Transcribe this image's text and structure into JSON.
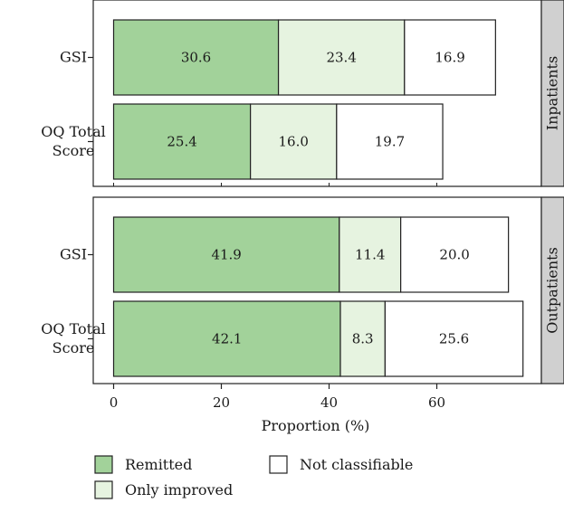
{
  "chart_data": {
    "type": "bar",
    "orientation": "horizontal",
    "stacked": true,
    "xlabel": "Proportion (%)",
    "ylabel": "",
    "xlim": [
      -6,
      80
    ],
    "xticks": [
      0,
      20,
      40,
      60
    ],
    "legend_position": "bottom",
    "series": [
      {
        "name": "Remitted",
        "color": "#a2d29a"
      },
      {
        "name": "Only improved",
        "color": "#e6f3e0"
      },
      {
        "name": "Not classifiable",
        "color": "#ffffff"
      }
    ],
    "panels": [
      {
        "label": "Inpatients",
        "rows": [
          {
            "label": [
              "GSI"
            ],
            "values": [
              30.6,
              23.4,
              16.9
            ],
            "value_labels": [
              "30.6",
              "23.4",
              "16.9"
            ]
          },
          {
            "label": [
              "OQ Total",
              "Score"
            ],
            "values": [
              25.4,
              16.0,
              19.7
            ],
            "value_labels": [
              "25.4",
              "16.0",
              "19.7"
            ]
          }
        ]
      },
      {
        "label": "Outpatients",
        "rows": [
          {
            "label": [
              "GSI"
            ],
            "values": [
              41.9,
              11.4,
              20.0
            ],
            "value_labels": [
              "41.9",
              "11.4",
              "20.0"
            ]
          },
          {
            "label": [
              "OQ Total",
              "Score"
            ],
            "values": [
              42.1,
              8.3,
              25.6
            ],
            "value_labels": [
              "42.1",
              "8.3",
              "25.6"
            ]
          }
        ]
      }
    ]
  }
}
